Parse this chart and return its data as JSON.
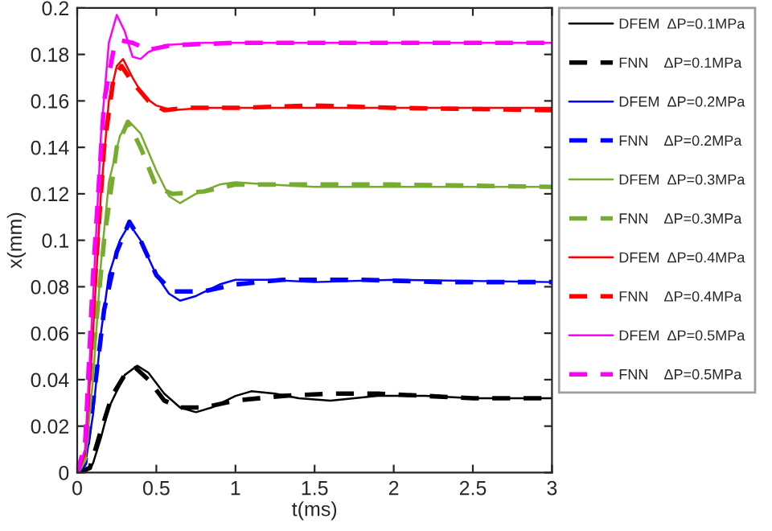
{
  "chart_data": {
    "type": "line",
    "xlabel": "t(ms)",
    "ylabel": "x(mm)",
    "xlim": [
      0,
      3
    ],
    "xticks": [
      0,
      0.5,
      1,
      1.5,
      2,
      2.5,
      3
    ],
    "ylim": [
      0,
      0.2
    ],
    "yticks": [
      0,
      0.02,
      0.04,
      0.06,
      0.08,
      0.1,
      0.12,
      0.14,
      0.16,
      0.18,
      0.2
    ],
    "grid": false,
    "legend": "right",
    "marker": "none",
    "series": [
      {
        "name": "DFEM  ΔP=0.1MPa",
        "color": "#000000",
        "line_style": "solid",
        "x": [
          0,
          0.05,
          0.1,
          0.15,
          0.2,
          0.3,
          0.38,
          0.45,
          0.55,
          0.65,
          0.75,
          0.85,
          1.0,
          1.1,
          1.25,
          1.4,
          1.6,
          1.9,
          2.2,
          2.5,
          3
        ],
        "values": [
          0,
          0,
          0.004,
          0.015,
          0.028,
          0.042,
          0.046,
          0.043,
          0.034,
          0.028,
          0.026,
          0.028,
          0.033,
          0.035,
          0.034,
          0.032,
          0.031,
          0.033,
          0.033,
          0.032,
          0.032
        ]
      },
      {
        "name": "FNN    ΔP=0.1MPa",
        "color": "#000000",
        "line_style": "dashed",
        "x": [
          0,
          0.08,
          0.15,
          0.22,
          0.3,
          0.37,
          0.45,
          0.55,
          0.65,
          0.8,
          1.0,
          1.3,
          1.6,
          1.9,
          2.2,
          2.5,
          3
        ],
        "values": [
          0,
          0.002,
          0.018,
          0.033,
          0.042,
          0.045,
          0.04,
          0.031,
          0.028,
          0.028,
          0.031,
          0.033,
          0.034,
          0.034,
          0.033,
          0.032,
          0.032
        ]
      },
      {
        "name": "DFEM  ΔP=0.2MPa",
        "color": "#0000ff",
        "line_style": "solid",
        "x": [
          0,
          0.05,
          0.1,
          0.15,
          0.2,
          0.27,
          0.33,
          0.4,
          0.5,
          0.58,
          0.65,
          0.75,
          0.9,
          1.0,
          1.2,
          1.5,
          2,
          3
        ],
        "values": [
          0,
          0.003,
          0.025,
          0.06,
          0.085,
          0.1,
          0.107,
          0.1,
          0.085,
          0.077,
          0.074,
          0.076,
          0.081,
          0.083,
          0.083,
          0.082,
          0.083,
          0.082
        ]
      },
      {
        "name": "FNN    ΔP=0.2MPa",
        "color": "#0000ff",
        "line_style": "dashed",
        "x": [
          0,
          0.05,
          0.1,
          0.17,
          0.25,
          0.33,
          0.4,
          0.5,
          0.6,
          0.8,
          1.0,
          1.3,
          1.8,
          2.3,
          3
        ],
        "values": [
          0,
          0.004,
          0.03,
          0.07,
          0.095,
          0.108,
          0.1,
          0.085,
          0.078,
          0.078,
          0.081,
          0.083,
          0.083,
          0.082,
          0.082
        ]
      },
      {
        "name": "DFEM  ΔP=0.3MPa",
        "color": "#77ac30",
        "line_style": "solid",
        "x": [
          0,
          0.05,
          0.1,
          0.15,
          0.2,
          0.27,
          0.33,
          0.4,
          0.5,
          0.58,
          0.65,
          0.75,
          0.9,
          1.0,
          1.2,
          1.5,
          3
        ],
        "values": [
          0,
          0.005,
          0.04,
          0.09,
          0.125,
          0.145,
          0.151,
          0.146,
          0.13,
          0.119,
          0.116,
          0.12,
          0.124,
          0.125,
          0.124,
          0.123,
          0.123
        ]
      },
      {
        "name": "FNN    ΔP=0.3MPa",
        "color": "#77ac30",
        "line_style": "dashed",
        "x": [
          0,
          0.05,
          0.1,
          0.17,
          0.25,
          0.32,
          0.4,
          0.5,
          0.6,
          0.8,
          1.0,
          1.5,
          2,
          3
        ],
        "values": [
          0,
          0.006,
          0.05,
          0.1,
          0.14,
          0.151,
          0.14,
          0.123,
          0.12,
          0.121,
          0.124,
          0.124,
          0.124,
          0.123
        ]
      },
      {
        "name": "DFEM  ΔP=0.4MPa",
        "color": "#ff0000",
        "line_style": "solid",
        "x": [
          0,
          0.05,
          0.1,
          0.15,
          0.2,
          0.25,
          0.29,
          0.35,
          0.42,
          0.5,
          0.6,
          0.8,
          1.0,
          3
        ],
        "values": [
          0,
          0.008,
          0.06,
          0.12,
          0.16,
          0.175,
          0.178,
          0.17,
          0.162,
          0.158,
          0.156,
          0.157,
          0.157,
          0.157
        ]
      },
      {
        "name": "FNN    ΔP=0.4MPa",
        "color": "#ff0000",
        "line_style": "dashed",
        "x": [
          0,
          0.05,
          0.1,
          0.17,
          0.23,
          0.28,
          0.35,
          0.45,
          0.55,
          0.7,
          1.0,
          1.5,
          2,
          3
        ],
        "values": [
          0,
          0.01,
          0.07,
          0.14,
          0.17,
          0.175,
          0.168,
          0.16,
          0.156,
          0.157,
          0.157,
          0.158,
          0.157,
          0.156
        ]
      },
      {
        "name": "DFEM  ΔP=0.5MPa",
        "color": "#ff00ff",
        "line_style": "solid",
        "x": [
          0,
          0.05,
          0.1,
          0.15,
          0.2,
          0.25,
          0.3,
          0.35,
          0.4,
          0.45,
          0.55,
          0.8,
          3
        ],
        "values": [
          0,
          0.01,
          0.075,
          0.145,
          0.185,
          0.197,
          0.19,
          0.179,
          0.178,
          0.181,
          0.184,
          0.185,
          0.185
        ]
      },
      {
        "name": "FNN    ΔP=0.5MPa",
        "color": "#ff00ff",
        "line_style": "dashed",
        "x": [
          0,
          0.05,
          0.1,
          0.17,
          0.23,
          0.28,
          0.35,
          0.45,
          0.6,
          1.0,
          2,
          3
        ],
        "values": [
          0,
          0.012,
          0.085,
          0.16,
          0.182,
          0.186,
          0.185,
          0.182,
          0.184,
          0.185,
          0.185,
          0.185
        ]
      }
    ]
  }
}
